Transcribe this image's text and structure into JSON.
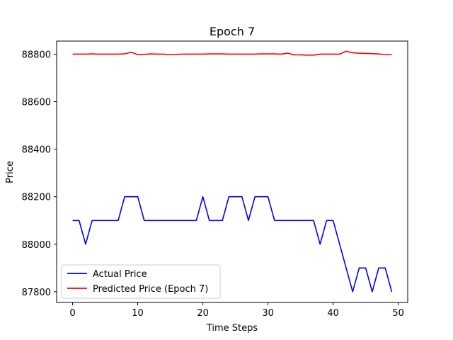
{
  "chart_data": {
    "type": "line",
    "title": "Epoch 7",
    "xlabel": "Time Steps",
    "ylabel": "Price",
    "xlim": [
      -2.45,
      51.45
    ],
    "ylim": [
      87755,
      88855
    ],
    "xticks": [
      0,
      10,
      20,
      30,
      40,
      50
    ],
    "yticks": [
      87800,
      88000,
      88200,
      88400,
      88600,
      88800
    ],
    "x": [
      0,
      1,
      2,
      3,
      4,
      5,
      6,
      7,
      8,
      9,
      10,
      11,
      12,
      13,
      14,
      15,
      16,
      17,
      18,
      19,
      20,
      21,
      22,
      23,
      24,
      25,
      26,
      27,
      28,
      29,
      30,
      31,
      32,
      33,
      34,
      35,
      36,
      37,
      38,
      39,
      40,
      41,
      42,
      43,
      44,
      45,
      46,
      47,
      48,
      49
    ],
    "series": [
      {
        "name": "Actual Price",
        "color": "#0000ff",
        "values": [
          88100,
          88100,
          88000,
          88100,
          88100,
          88100,
          88100,
          88100,
          88200,
          88200,
          88200,
          88100,
          88100,
          88100,
          88100,
          88100,
          88100,
          88100,
          88100,
          88100,
          88200,
          88100,
          88100,
          88100,
          88200,
          88200,
          88200,
          88100,
          88200,
          88200,
          88200,
          88100,
          88100,
          88100,
          88100,
          88100,
          88100,
          88100,
          88000,
          88100,
          88100,
          88000,
          87900,
          87800,
          87900,
          87900,
          87800,
          87900,
          87900,
          87800
        ]
      },
      {
        "name": "Predicted Price (Epoch 7)",
        "color": "#ff0000",
        "values": [
          88800,
          88800,
          88800,
          88801,
          88800,
          88800,
          88800,
          88800,
          88801,
          88808,
          88798,
          88799,
          88801,
          88800,
          88800,
          88798,
          88799,
          88800,
          88800,
          88800,
          88800,
          88801,
          88801,
          88801,
          88800,
          88800,
          88800,
          88800,
          88800,
          88801,
          88801,
          88801,
          88800,
          88804,
          88797,
          88797,
          88796,
          88796,
          88800,
          88800,
          88800,
          88800,
          88812,
          88806,
          88804,
          88803,
          88802,
          88801,
          88798,
          88798
        ]
      }
    ],
    "legend": "lower-left",
    "grid": false
  }
}
